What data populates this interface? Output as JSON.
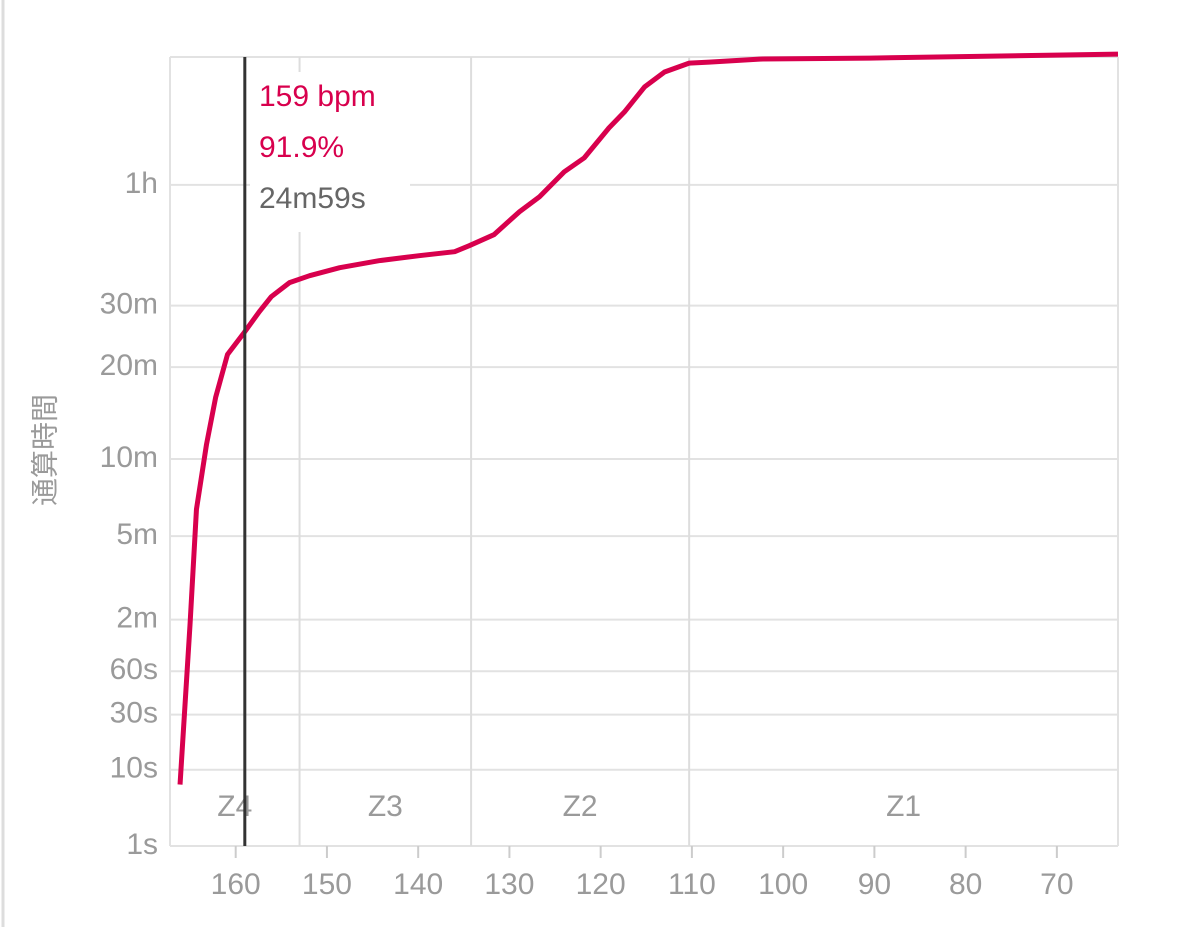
{
  "chart_data": {
    "type": "line",
    "y_axis_label": "通算時間",
    "yscale": "pow",
    "yexponent": 0.25,
    "xlim": [
      167.2,
      63.3
    ],
    "xticks": [
      160,
      150,
      140,
      130,
      120,
      110,
      100,
      90,
      80,
      70
    ],
    "ylim": [
      1,
      6800
    ],
    "yticks": [
      {
        "value": 1,
        "label": "1s"
      },
      {
        "value": 10,
        "label": "10s"
      },
      {
        "value": 30,
        "label": "30s"
      },
      {
        "value": 60,
        "label": "60s"
      },
      {
        "value": 120,
        "label": "2m"
      },
      {
        "value": 300,
        "label": "5m"
      },
      {
        "value": 600,
        "label": "10m"
      },
      {
        "value": 1200,
        "label": "20m"
      },
      {
        "value": 1800,
        "label": "30m"
      },
      {
        "value": 3600,
        "label": "1h"
      }
    ],
    "grid": true,
    "color": "#d8004d",
    "x": [
      166.1,
      165.0,
      164.3,
      163.2,
      162.2,
      160.9,
      159.2,
      157.4,
      156.1,
      154.1,
      151.9,
      148.6,
      144.3,
      139.9,
      136.0,
      134.4,
      131.7,
      128.9,
      126.7,
      124.0,
      121.8,
      119.1,
      117.4,
      115.2,
      113.0,
      110.3,
      108.1,
      102.6,
      90.5,
      63.3
    ],
    "values": [
      7,
      114,
      387,
      675,
      967,
      1309,
      1499,
      1734,
      1903,
      2074,
      2162,
      2268,
      2363,
      2433,
      2490,
      2577,
      2743,
      3116,
      3379,
      3852,
      4139,
      4805,
      5193,
      5845,
      6266,
      6526,
      6555,
      6646,
      6676,
      6797
    ],
    "zones": [
      "Z4",
      "Z3",
      "Z2",
      "Z1"
    ],
    "zone_bounds": [
      153.0,
      134.2,
      110.3
    ],
    "cursor": {
      "x": 159,
      "labels": [
        "159 bpm",
        "91.9%",
        "24m59s"
      ]
    }
  }
}
